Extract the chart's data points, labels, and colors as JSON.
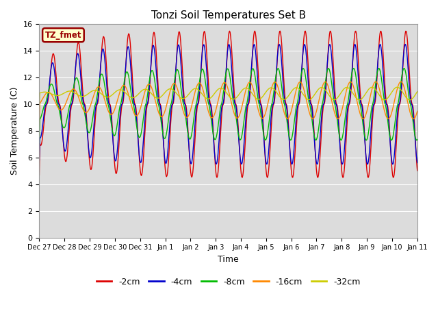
{
  "title": "Tonzi Soil Temperatures Set B",
  "xlabel": "Time",
  "ylabel": "Soil Temperature (C)",
  "ylim": [
    0,
    16
  ],
  "yticks": [
    0,
    2,
    4,
    6,
    8,
    10,
    12,
    14,
    16
  ],
  "bg_color": "#dcdcdc",
  "fig_color": "#ffffff",
  "label_box_text": "TZ_fmet",
  "label_box_facecolor": "#ffffcc",
  "label_box_edgecolor": "#990000",
  "label_box_textcolor": "#990000",
  "x_tick_labels": [
    "Dec 27",
    "Dec 28",
    "Dec 29",
    "Dec 30",
    "Dec 31",
    "Jan 1",
    "Jan 2",
    "Jan 3",
    "Jan 4",
    "Jan 5",
    "Jan 6",
    "Jan 7",
    "Jan 8",
    "Jan 9",
    "Jan 10",
    "Jan 11"
  ],
  "lines": [
    {
      "label": "-2cm",
      "color": "#dd0000"
    },
    {
      "label": "-4cm",
      "color": "#0000cc"
    },
    {
      "label": "-8cm",
      "color": "#00bb00"
    },
    {
      "label": "-16cm",
      "color": "#ff8800"
    },
    {
      "label": "-32cm",
      "color": "#cccc00"
    }
  ],
  "days": 15,
  "n_points": 720
}
